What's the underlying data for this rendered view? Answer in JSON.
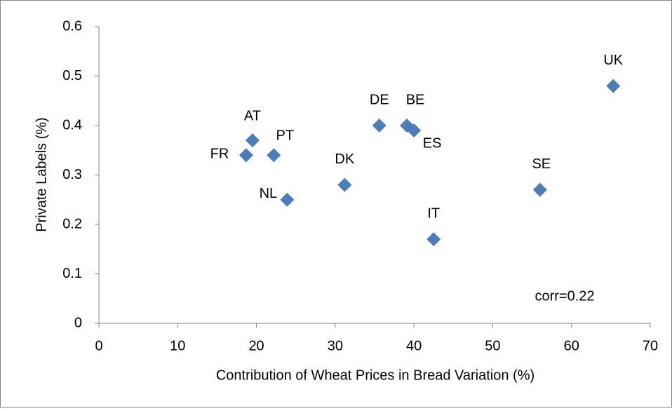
{
  "chart_data": {
    "type": "scatter",
    "x_label": "Contribution of Wheat Prices in Bread Variation  (%)",
    "y_label": "Private Labels (%)",
    "annotation": "corr=0.22",
    "point_labels": [
      "FR",
      "AT",
      "PT",
      "NL",
      "DK",
      "DE",
      "BE",
      "ES",
      "IT",
      "SE",
      "UK"
    ],
    "x": [
      18.7,
      19.5,
      22.2,
      23.9,
      31.2,
      35.6,
      39.1,
      40.0,
      42.5,
      56.0,
      65.3
    ],
    "values": [
      0.34,
      0.37,
      0.34,
      0.25,
      0.28,
      0.4,
      0.4,
      0.39,
      0.17,
      0.27,
      0.48
    ],
    "color": "#4a7ebb",
    "xlim": [
      0,
      70
    ],
    "xticks": [
      0,
      10,
      20,
      30,
      40,
      50,
      60,
      70
    ],
    "ylim": [
      0,
      0.6
    ],
    "yticks": [
      0,
      0.1,
      0.2,
      0.3,
      0.4,
      0.5,
      0.6
    ],
    "grid": false
  }
}
